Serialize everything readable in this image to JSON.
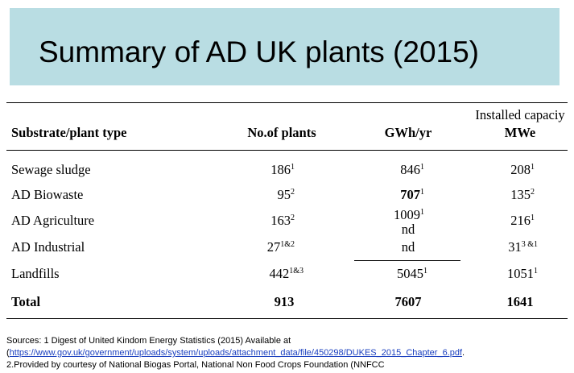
{
  "title": "Summary of AD UK plants (2015)",
  "table": {
    "headers": {
      "substrate": "Substrate/plant type",
      "plants": "No.of plants",
      "gwh": "GWh/yr",
      "capacity_line1": "Installed capaciy",
      "capacity_line2": "MWe"
    },
    "rows": [
      {
        "type": "Sewage sludge",
        "plants": "186",
        "plants_sup": "1",
        "gwh": "846",
        "gwh_sup": "1",
        "mwe": "208",
        "mwe_sup": "1"
      },
      {
        "type": "AD Biowaste",
        "plants": "95",
        "plants_sup": "2",
        "gwh": "707",
        "gwh_sup": "1",
        "mwe": "135",
        "mwe_sup": "2"
      },
      {
        "type": "AD Agriculture",
        "plants": "163",
        "plants_sup": "2",
        "gwh": "1009",
        "gwh_sup": "1",
        "gwh_line2": "nd",
        "mwe": "216",
        "mwe_sup": "1"
      },
      {
        "type": "AD Industrial",
        "plants": "27",
        "plants_sup": "1&2",
        "gwh": "nd",
        "gwh_sup": "",
        "mwe": "31",
        "mwe_sup": "3 &1"
      },
      {
        "type": "Landfills",
        "plants": "442",
        "plants_sup": "1&3",
        "gwh": "5045",
        "gwh_sup": "1",
        "mwe": "1051",
        "mwe_sup": "1"
      }
    ],
    "total": {
      "label": "Total",
      "plants": "913",
      "gwh": "7607",
      "mwe": "1641"
    }
  },
  "sources": {
    "line1": "Sources: 1 Digest of United Kindom Energy Statistics (2015) Available at",
    "line2_prefix": "(",
    "line2_link": "https://www.gov.uk/government/uploads/system/uploads/attachment_data/file/450298/DUKES_2015_Chapter_6.pdf",
    "line2_suffix": ".",
    "line3": "2.Provided by courtesy of National Biogas Portal, National Non Food Crops Foundation (NNFCC"
  }
}
